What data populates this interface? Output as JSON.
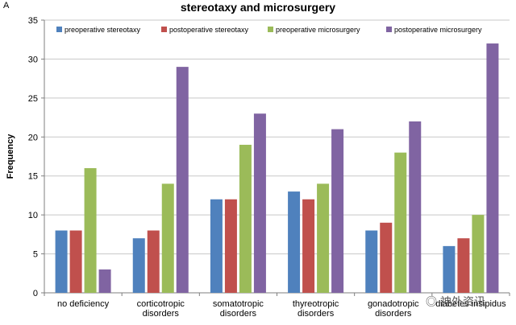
{
  "chart_data": {
    "type": "bar",
    "panel_label": "A",
    "title": "stereotaxy and microsurgery",
    "xlabel": "",
    "ylabel": "Frequency",
    "ylim": [
      0,
      35
    ],
    "yticks": [
      0,
      5,
      10,
      15,
      20,
      25,
      30,
      35
    ],
    "grid": true,
    "legend_position": "top",
    "categories": [
      [
        "no deficiency"
      ],
      [
        "corticotropic",
        "disorders"
      ],
      [
        "somatotropic",
        "disorders"
      ],
      [
        "thyreotropic",
        "disorders"
      ],
      [
        "gonadotropic",
        "disorders"
      ],
      [
        "diabetes insipidus"
      ]
    ],
    "series": [
      {
        "name": "preoperative stereotaxy",
        "color": "#4f81bd",
        "values": [
          8,
          7,
          12,
          13,
          8,
          6
        ]
      },
      {
        "name": "postoperative stereotaxy",
        "color": "#c0504d",
        "values": [
          8,
          8,
          12,
          12,
          9,
          7
        ]
      },
      {
        "name": "preoperative microsurgery",
        "color": "#9bbb59",
        "values": [
          16,
          14,
          19,
          14,
          18,
          10
        ]
      },
      {
        "name": "postoperative microsurgery",
        "color": "#8064a2",
        "values": [
          3,
          29,
          23,
          21,
          22,
          32
        ]
      }
    ]
  },
  "watermark_text": "神外资讯"
}
